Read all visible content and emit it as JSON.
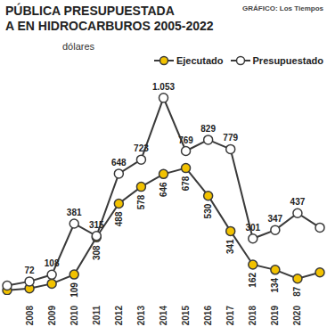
{
  "chart_data": {
    "type": "line",
    "title": "PÚBLICA PRESUPUESTADA",
    "subtitle": "A EN HIDROCARBUROS 2005-2022",
    "annotations": [
      "dólares",
      "GRÁFICO: Los Tiempos"
    ],
    "categories": [
      null,
      "2008",
      "2009",
      "2010",
      "2011",
      "2012",
      "2013",
      "2014",
      "2015",
      "2016",
      "2017",
      "2018",
      "2019",
      "2020",
      null
    ],
    "series": [
      {
        "name": "Ejecutado",
        "color": "#f2c200",
        "marker": "circle",
        "values": [
          25,
          35,
          60,
          109,
          308,
          488,
          578,
          646,
          678,
          530,
          341,
          162,
          134,
          87,
          120
        ],
        "value_labels": [
          null,
          null,
          null,
          "109",
          "308",
          "488",
          "578",
          "646",
          "678",
          "530",
          "341",
          "162",
          "134",
          "87",
          null
        ]
      },
      {
        "name": "Presupuestado",
        "color": "#ffffff",
        "marker": "circle",
        "values": [
          50,
          72,
          108,
          381,
          315,
          648,
          723,
          1053,
          769,
          829,
          779,
          301,
          347,
          437,
          360
        ],
        "value_labels": [
          null,
          "72",
          "108",
          "381",
          "315",
          "648",
          "723",
          "1.053",
          "769",
          "829",
          "779",
          "301",
          "347",
          "437",
          null
        ]
      }
    ],
    "ylim": [
      0,
      1100
    ],
    "tick_labels": "x",
    "grid": false,
    "legend": "top right",
    "data_labels": true
  }
}
